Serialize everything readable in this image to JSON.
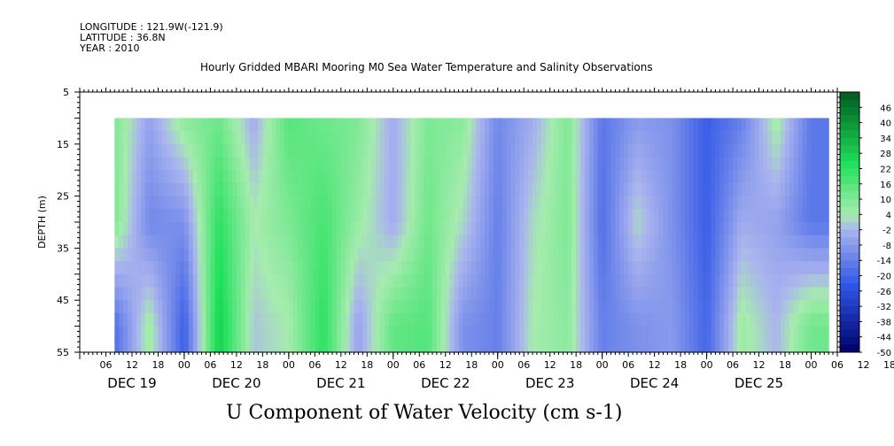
{
  "header": {
    "longitude": "LONGITUDE : 121.9W(-121.9)",
    "latitude": "LATITUDE : 36.8N",
    "year": "YEAR : 2010",
    "title": "Hourly Gridded MBARI Mooring M0 Sea Water Temperature and Salinity Observations"
  },
  "colors": {
    "negative_darkest": "#00006a",
    "negative_mid": "#2e55e6",
    "neutral_low": "#aab4ee",
    "neutral_high": "#a6ecae",
    "positive_mid": "#1ee05a",
    "positive_darkest": "#005a20"
  },
  "chart_data": {
    "type": "heatmap",
    "title": "U Component of Water Velocity (cm s-1)",
    "ylabel": "DEPTH (m)",
    "xlabel": "",
    "ylim": [
      55,
      5
    ],
    "y_tick_labels": [
      "5",
      "15",
      "25",
      "35",
      "45",
      "55"
    ],
    "x_hour_labels": [
      "06",
      "12",
      "18",
      "00",
      "06",
      "12",
      "18",
      "00",
      "06",
      "12",
      "18",
      "00",
      "06",
      "12",
      "18",
      "00",
      "06",
      "12",
      "18",
      "00",
      "06",
      "12",
      "18",
      "00",
      "06",
      "12",
      "18",
      "00",
      "06",
      "12",
      "18",
      "00"
    ],
    "x_day_labels": [
      "DEC 19",
      "DEC 20",
      "DEC 21",
      "DEC 22",
      "DEC 23",
      "DEC 24",
      "DEC 25"
    ],
    "x_range": [
      "2010-12-19 00:00",
      "2010-12-26 06:00"
    ],
    "data_x_range": [
      "2010-12-19 08:00",
      "2010-12-26 04:00"
    ],
    "data_depth_range": [
      10,
      55
    ],
    "colorbar": {
      "labels": [
        "46",
        "40",
        "34",
        "28",
        "22",
        "16",
        "10",
        "4",
        "-2",
        "-8",
        "-14",
        "-20",
        "-26",
        "-32",
        "-38",
        "-44",
        "-50"
      ],
      "min": -50,
      "max": 52,
      "step": 3
    },
    "velocity_profile": {
      "x": [
        "2010-12-19 08:00",
        "2010-12-19 16:00",
        "2010-12-20 00:00",
        "2010-12-20 08:00",
        "2010-12-20 16:00",
        "2010-12-21 00:00",
        "2010-12-21 08:00",
        "2010-12-21 16:00",
        "2010-12-22 00:00",
        "2010-12-22 08:00",
        "2010-12-22 16:00",
        "2010-12-23 00:00",
        "2010-12-23 08:00",
        "2010-12-23 16:00",
        "2010-12-24 00:00",
        "2010-12-24 08:00",
        "2010-12-24 16:00",
        "2010-12-25 00:00",
        "2010-12-25 08:00",
        "2010-12-25 16:00",
        "2010-12-26 00:00"
      ],
      "series": [
        {
          "depth": 10,
          "values": [
            10,
            -6,
            8,
            12,
            -4,
            16,
            12,
            10,
            -4,
            10,
            8,
            -12,
            -4,
            10,
            -16,
            -8,
            -10,
            -22,
            -14,
            6,
            -16
          ]
        },
        {
          "depth": 30,
          "values": [
            10,
            -12,
            -10,
            22,
            4,
            10,
            18,
            6,
            -4,
            12,
            2,
            -14,
            2,
            10,
            -18,
            2,
            -10,
            -22,
            -4,
            -6,
            -16
          ]
        },
        {
          "depth": 50,
          "values": [
            -18,
            6,
            -22,
            28,
            0,
            4,
            22,
            -6,
            14,
            16,
            -10,
            -14,
            4,
            8,
            -14,
            -10,
            -8,
            -20,
            6,
            -2,
            12
          ]
        }
      ]
    }
  }
}
